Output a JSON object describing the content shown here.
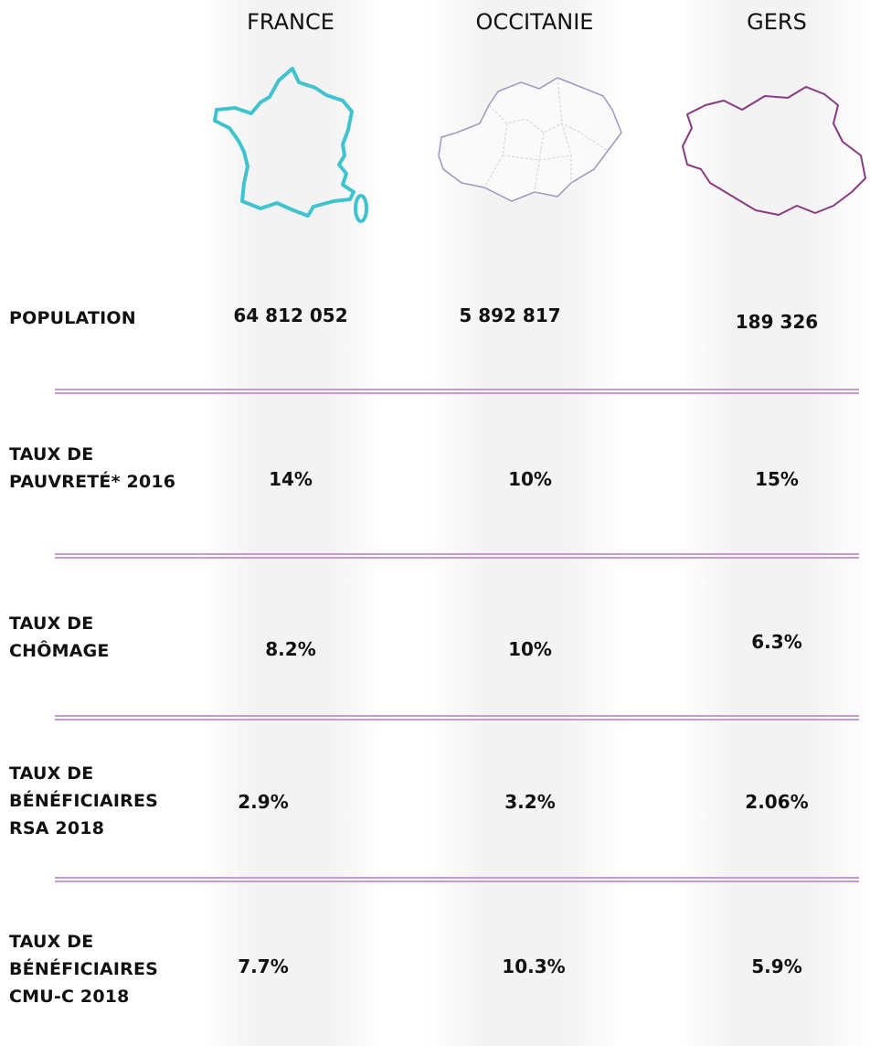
{
  "table": {
    "columns": [
      "FRANCE",
      "OCCITANIE",
      "GERS"
    ],
    "rows": [
      {
        "label": [
          "POPULATION"
        ],
        "values": [
          "64 812 052",
          "5 892 817",
          "189 326"
        ]
      },
      {
        "label": [
          "TAUX DE",
          "PAUVRETÉ* 2016"
        ],
        "values": [
          "14%",
          "10%",
          "15%"
        ]
      },
      {
        "label": [
          "TAUX DE",
          "CHÔMAGE"
        ],
        "values": [
          "8.2%",
          "10%",
          "6.3%"
        ]
      },
      {
        "label": [
          "TAUX DE",
          "BÉNÉFICIAIRES",
          "RSA 2018"
        ],
        "values": [
          "2.9%",
          "3.2%",
          "2.06%"
        ]
      },
      {
        "label": [
          "TAUX DE",
          "BÉNÉFICIAIRES",
          "CMU-C 2018"
        ],
        "values": [
          "7.7%",
          "10.3%",
          "5.9%"
        ]
      }
    ]
  }
}
